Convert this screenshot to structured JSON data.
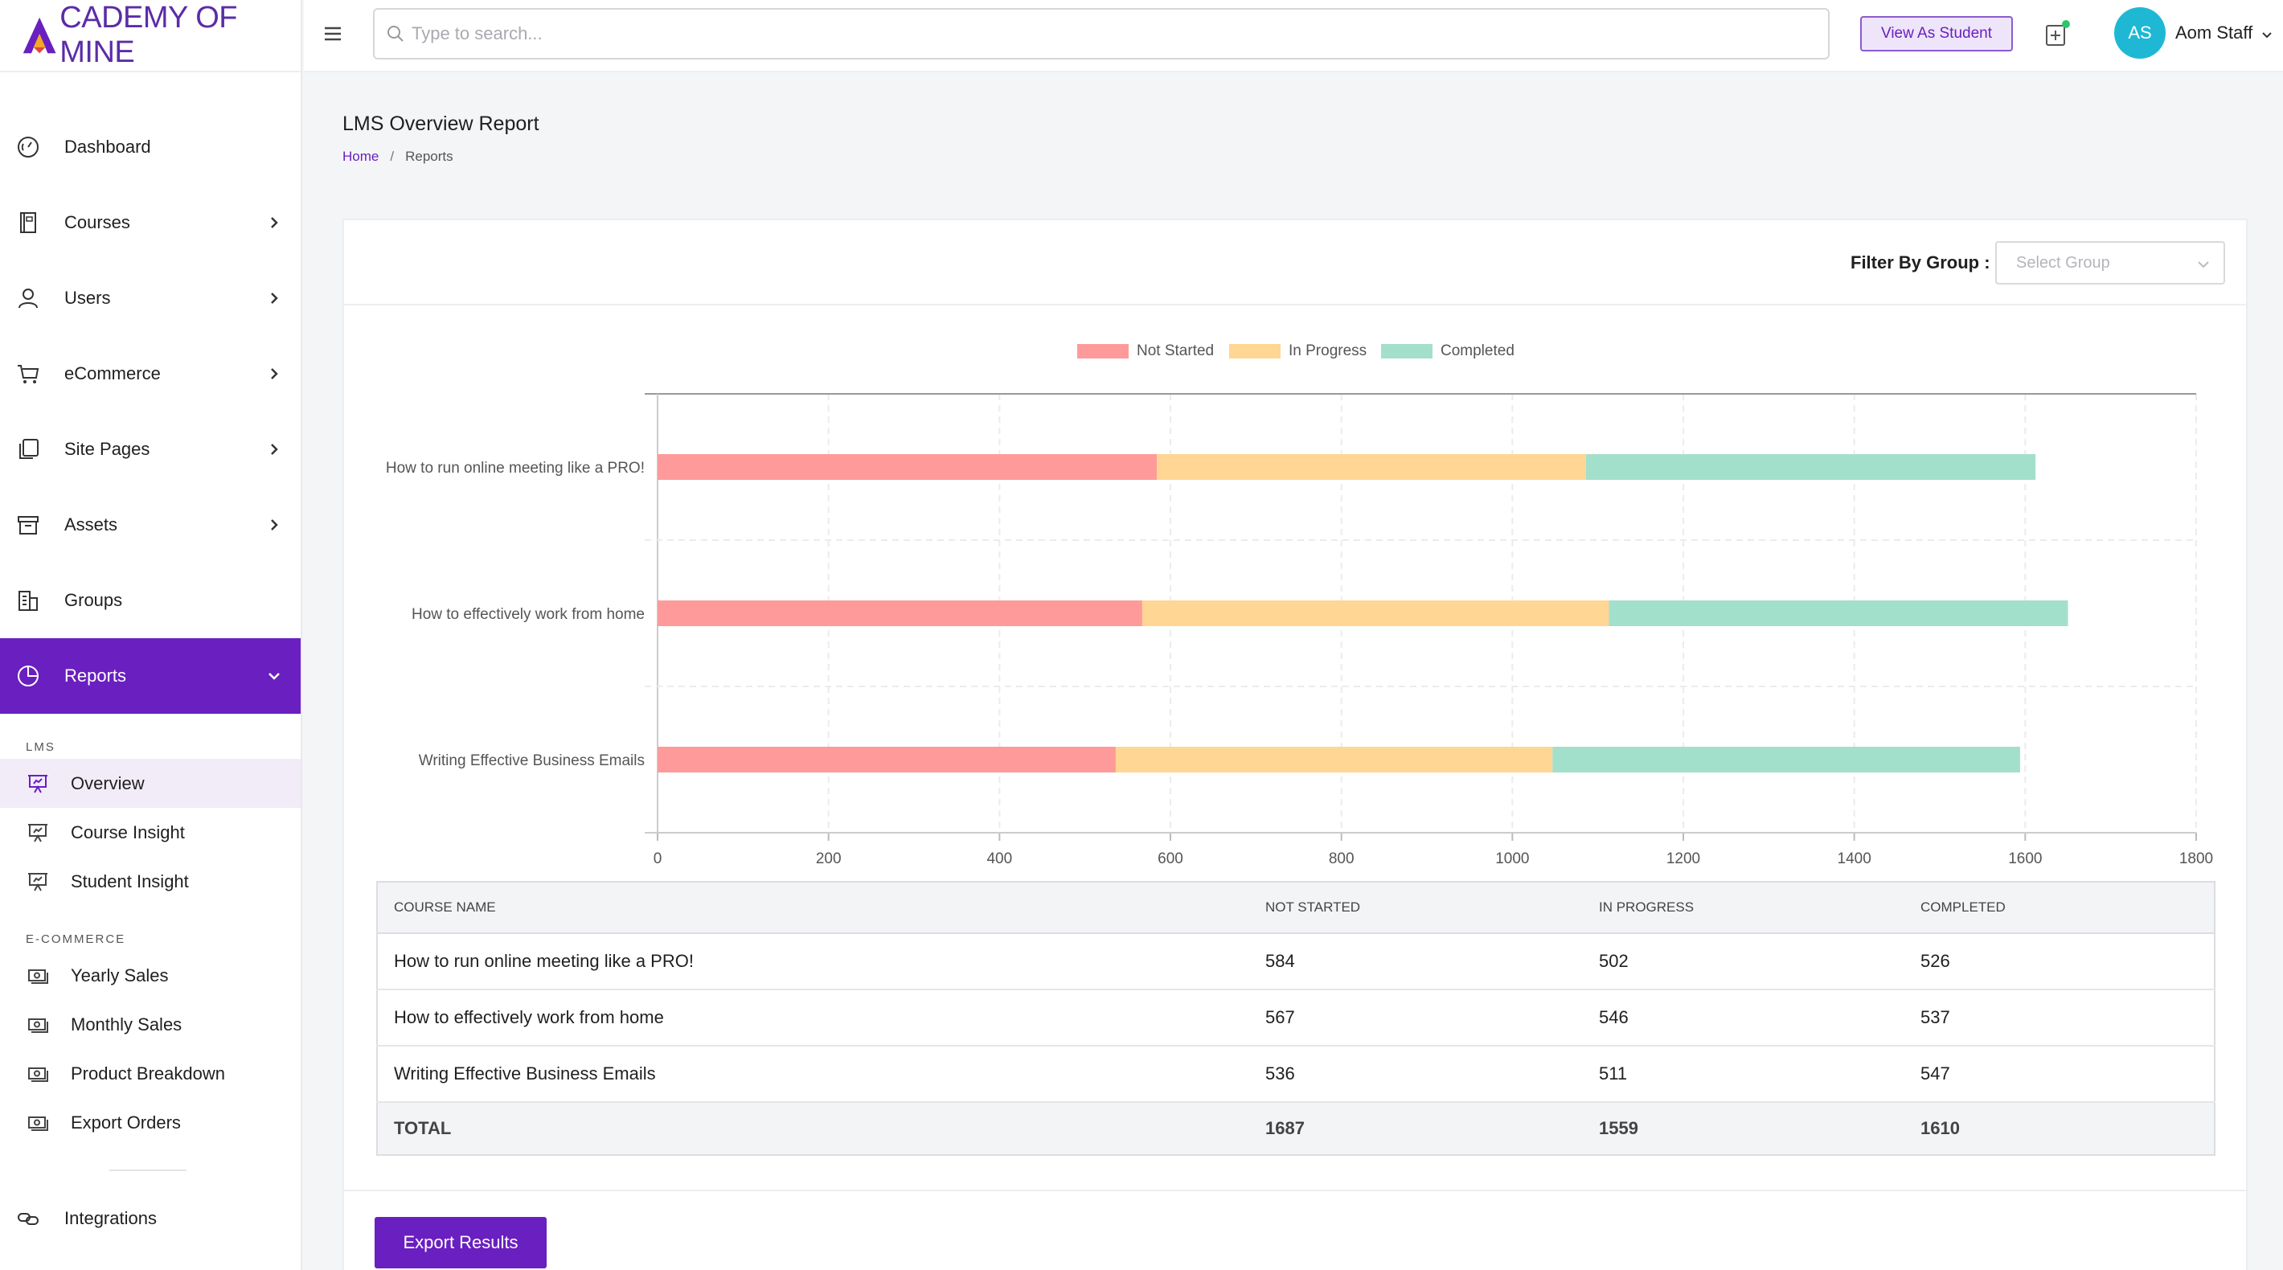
{
  "brand": {
    "logo_text": "CADEMY OF MINE",
    "accent": "#6a1fc0"
  },
  "sidebar": {
    "items": [
      {
        "label": "Dashboard",
        "icon": "dashboard-gauge-icon",
        "has_children": false
      },
      {
        "label": "Courses",
        "icon": "book-icon",
        "has_children": true
      },
      {
        "label": "Users",
        "icon": "user-icon",
        "has_children": true
      },
      {
        "label": "eCommerce",
        "icon": "cart-icon",
        "has_children": true
      },
      {
        "label": "Site Pages",
        "icon": "pages-icon",
        "has_children": true
      },
      {
        "label": "Assets",
        "icon": "archive-icon",
        "has_children": true
      },
      {
        "label": "Groups",
        "icon": "building-icon",
        "has_children": false
      },
      {
        "label": "Reports",
        "icon": "pie-chart-icon",
        "has_children": true,
        "active": true
      }
    ],
    "lms_heading": "LMS",
    "lms_items": [
      {
        "label": "Overview",
        "icon": "presentation-chart-icon",
        "selected": true
      },
      {
        "label": "Course Insight",
        "icon": "presentation-chart-icon"
      },
      {
        "label": "Student Insight",
        "icon": "presentation-chart-icon"
      }
    ],
    "ecommerce_heading": "E-COMMERCE",
    "ecommerce_items": [
      {
        "label": "Yearly Sales",
        "icon": "money-icon"
      },
      {
        "label": "Monthly Sales",
        "icon": "money-icon"
      },
      {
        "label": "Product Breakdown",
        "icon": "money-icon"
      },
      {
        "label": "Export Orders",
        "icon": "money-icon"
      }
    ],
    "integrations": {
      "label": "Integrations",
      "icon": "link-icon"
    }
  },
  "topbar": {
    "search_placeholder": "Type to search...",
    "view_as_student": "View As Student",
    "avatar_initials": "AS",
    "user_name": "Aom Staff"
  },
  "page": {
    "title": "LMS Overview Report",
    "breadcrumb": {
      "home": "Home",
      "separator": "/",
      "current": "Reports"
    },
    "filter_label": "Filter By Group :",
    "group_placeholder": "Select Group",
    "export_label": "Export Results"
  },
  "chart_data": {
    "type": "bar",
    "orientation": "horizontal",
    "stacked": true,
    "categories": [
      "How to run online meeting like a PRO!",
      "How to effectively work from home",
      "Writing Effective Business Emails"
    ],
    "series": [
      {
        "name": "Not Started",
        "color": "#ff9a9a",
        "values": [
          584,
          567,
          536
        ]
      },
      {
        "name": "In Progress",
        "color": "#ffd694",
        "values": [
          502,
          546,
          511
        ]
      },
      {
        "name": "Completed",
        "color": "#a3e0cb",
        "values": [
          526,
          537,
          547
        ]
      }
    ],
    "xlim": [
      0,
      1800
    ],
    "xticks": [
      "0",
      "200",
      "400",
      "600",
      "800",
      "1000",
      "1200",
      "1400",
      "1600",
      "1800"
    ],
    "legend": "top-center",
    "grid": true
  },
  "table": {
    "headers": [
      "COURSE NAME",
      "NOT STARTED",
      "IN PROGRESS",
      "COMPLETED"
    ],
    "rows": [
      [
        "How to run online meeting like a PRO!",
        "584",
        "502",
        "526"
      ],
      [
        "How to effectively work from home",
        "567",
        "546",
        "537"
      ],
      [
        "Writing Effective Business Emails",
        "536",
        "511",
        "547"
      ]
    ],
    "total": [
      "TOTAL",
      "1687",
      "1559",
      "1610"
    ]
  }
}
